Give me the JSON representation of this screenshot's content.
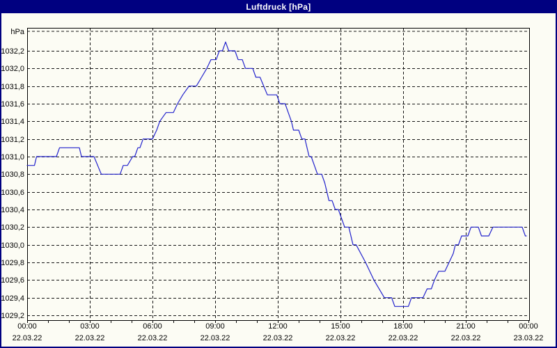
{
  "window": {
    "title": "Luftdruck [hPa]"
  },
  "colors": {
    "titlebar_bg": "#000080",
    "title_text": "#ffffff",
    "window_border": "#000080",
    "background": "#fcfcf4",
    "grid": "#141414",
    "frame": "#000000",
    "series_line": "#2222cc",
    "label_text": "#000000"
  },
  "chart_data": {
    "type": "line",
    "title": "Luftdruck [hPa]",
    "unit_label": "hPa",
    "grid": {
      "dashed": true,
      "horizontal_step_hpa": 0.2,
      "vertical_every_hours": 3,
      "minor_tick_every_hours": 1
    },
    "y_axis": {
      "min": 1029.2,
      "max": 1032.2,
      "step": 0.2,
      "labels_top_to_bottom": [
        "1032,2",
        "1032,0",
        "1031,8",
        "1031,6",
        "1031,4",
        "1031,2",
        "1031,0",
        "1030,8",
        "1030,6",
        "1030,4",
        "1030,2",
        "1030,0",
        "1029,8",
        "1029,6",
        "1029,4",
        "1029,2"
      ]
    },
    "x_axis": {
      "range_hours": [
        0,
        24
      ],
      "labels": [
        {
          "hour": 0,
          "time": "00:00",
          "date": "22.03.22"
        },
        {
          "hour": 3,
          "time": "03:00",
          "date": "22.03.22"
        },
        {
          "hour": 6,
          "time": "06:00",
          "date": "22.03.22"
        },
        {
          "hour": 9,
          "time": "09:00",
          "date": "22.03.22"
        },
        {
          "hour": 12,
          "time": "12:00",
          "date": "22.03.22"
        },
        {
          "hour": 15,
          "time": "15:00",
          "date": "22.03.22"
        },
        {
          "hour": 18,
          "time": "18:00",
          "date": "22.03.22"
        },
        {
          "hour": 21,
          "time": "21:00",
          "date": "22.03.22"
        },
        {
          "hour": 24,
          "time": "00:00",
          "date": "23.03.22"
        }
      ]
    },
    "series": [
      {
        "name": "Luftdruck",
        "color": "#2222cc",
        "points_hour_hpa": [
          [
            0.0,
            1030.9
          ],
          [
            0.35,
            1030.9
          ],
          [
            0.45,
            1031.0
          ],
          [
            1.4,
            1031.0
          ],
          [
            1.55,
            1031.1
          ],
          [
            2.5,
            1031.1
          ],
          [
            2.6,
            1031.0
          ],
          [
            3.2,
            1031.0
          ],
          [
            3.55,
            1030.8
          ],
          [
            4.45,
            1030.8
          ],
          [
            4.6,
            1030.9
          ],
          [
            4.8,
            1030.9
          ],
          [
            5.05,
            1031.0
          ],
          [
            5.15,
            1031.0
          ],
          [
            5.3,
            1031.1
          ],
          [
            5.4,
            1031.1
          ],
          [
            5.55,
            1031.2
          ],
          [
            6.0,
            1031.2
          ],
          [
            6.2,
            1031.3
          ],
          [
            6.35,
            1031.4
          ],
          [
            6.65,
            1031.5
          ],
          [
            7.0,
            1031.5
          ],
          [
            7.2,
            1031.6
          ],
          [
            7.45,
            1031.7
          ],
          [
            7.75,
            1031.8
          ],
          [
            8.1,
            1031.8
          ],
          [
            8.35,
            1031.9
          ],
          [
            8.6,
            1032.0
          ],
          [
            8.8,
            1032.1
          ],
          [
            9.05,
            1032.1
          ],
          [
            9.2,
            1032.2
          ],
          [
            9.35,
            1032.2
          ],
          [
            9.5,
            1032.3
          ],
          [
            9.65,
            1032.2
          ],
          [
            9.95,
            1032.2
          ],
          [
            10.1,
            1032.1
          ],
          [
            10.3,
            1032.1
          ],
          [
            10.45,
            1032.0
          ],
          [
            10.8,
            1032.0
          ],
          [
            10.95,
            1031.9
          ],
          [
            11.15,
            1031.9
          ],
          [
            11.5,
            1031.7
          ],
          [
            11.95,
            1031.7
          ],
          [
            12.1,
            1031.6
          ],
          [
            12.35,
            1031.6
          ],
          [
            12.5,
            1031.5
          ],
          [
            12.65,
            1031.4
          ],
          [
            12.75,
            1031.3
          ],
          [
            13.0,
            1031.3
          ],
          [
            13.15,
            1031.2
          ],
          [
            13.3,
            1031.2
          ],
          [
            13.5,
            1031.0
          ],
          [
            13.6,
            1031.0
          ],
          [
            13.9,
            1030.8
          ],
          [
            14.1,
            1030.8
          ],
          [
            14.25,
            1030.7
          ],
          [
            14.35,
            1030.6
          ],
          [
            14.45,
            1030.5
          ],
          [
            14.6,
            1030.5
          ],
          [
            14.75,
            1030.4
          ],
          [
            14.9,
            1030.4
          ],
          [
            15.2,
            1030.2
          ],
          [
            15.4,
            1030.2
          ],
          [
            15.6,
            1030.0
          ],
          [
            15.75,
            1030.0
          ],
          [
            16.2,
            1029.8
          ],
          [
            16.6,
            1029.6
          ],
          [
            17.1,
            1029.4
          ],
          [
            17.45,
            1029.4
          ],
          [
            17.6,
            1029.3
          ],
          [
            18.25,
            1029.3
          ],
          [
            18.4,
            1029.4
          ],
          [
            18.95,
            1029.4
          ],
          [
            19.15,
            1029.5
          ],
          [
            19.35,
            1029.5
          ],
          [
            19.5,
            1029.6
          ],
          [
            19.7,
            1029.7
          ],
          [
            20.0,
            1029.7
          ],
          [
            20.2,
            1029.8
          ],
          [
            20.4,
            1029.9
          ],
          [
            20.5,
            1030.0
          ],
          [
            20.65,
            1030.0
          ],
          [
            20.8,
            1030.1
          ],
          [
            21.1,
            1030.1
          ],
          [
            21.25,
            1030.2
          ],
          [
            21.6,
            1030.2
          ],
          [
            21.75,
            1030.1
          ],
          [
            22.1,
            1030.1
          ],
          [
            22.3,
            1030.2
          ],
          [
            23.7,
            1030.2
          ],
          [
            23.85,
            1030.1
          ],
          [
            23.9,
            1030.1
          ]
        ]
      }
    ]
  }
}
